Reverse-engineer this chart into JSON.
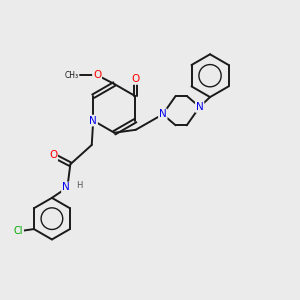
{
  "bg_color": "#ebebeb",
  "atom_colors": {
    "N": "#0000ee",
    "O": "#ff0000",
    "Cl": "#00aa00",
    "C": "#000000",
    "H": "#555555"
  },
  "bond_color": "#1a1a1a",
  "bond_width": 1.4,
  "figsize": [
    3.0,
    3.0
  ],
  "dpi": 100
}
